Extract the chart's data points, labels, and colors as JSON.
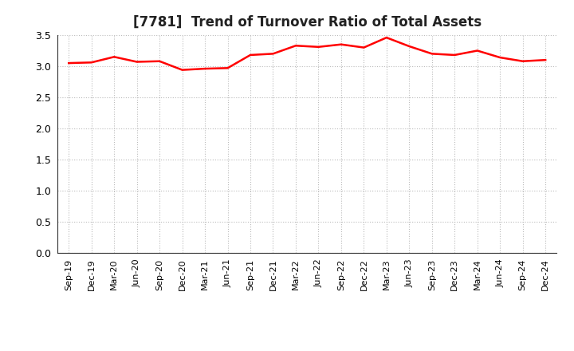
{
  "title": "[7781]  Trend of Turnover Ratio of Total Assets",
  "line_color": "#FF0000",
  "line_width": 1.8,
  "background_color": "#FFFFFF",
  "grid_color": "#BBBBBB",
  "ylim": [
    0.0,
    3.5
  ],
  "yticks": [
    0.0,
    0.5,
    1.0,
    1.5,
    2.0,
    2.5,
    3.0,
    3.5
  ],
  "x_labels": [
    "Sep-19",
    "Dec-19",
    "Mar-20",
    "Jun-20",
    "Sep-20",
    "Dec-20",
    "Mar-21",
    "Jun-21",
    "Sep-21",
    "Dec-21",
    "Mar-22",
    "Jun-22",
    "Sep-22",
    "Dec-22",
    "Mar-23",
    "Jun-23",
    "Sep-23",
    "Dec-23",
    "Mar-24",
    "Jun-24",
    "Sep-24",
    "Dec-24"
  ],
  "values": [
    3.05,
    3.06,
    3.15,
    3.07,
    3.08,
    2.94,
    2.96,
    2.97,
    3.18,
    3.2,
    3.33,
    3.31,
    3.35,
    3.3,
    3.46,
    3.32,
    3.2,
    3.18,
    3.25,
    3.14,
    3.08,
    3.1
  ],
  "title_fontsize": 12,
  "tick_fontsize": 9,
  "xtick_fontsize": 8
}
